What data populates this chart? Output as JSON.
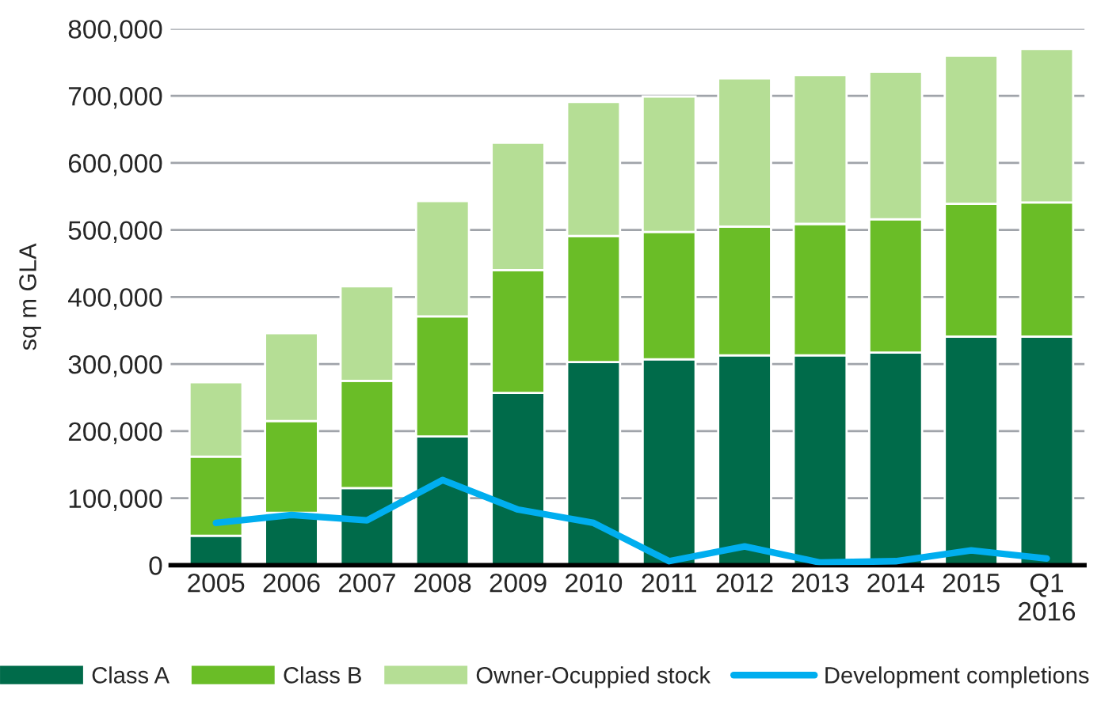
{
  "chart_data": {
    "type": "bar",
    "stacked": true,
    "ylabel": "sq m GLA",
    "categories": [
      "2005",
      "2006",
      "2007",
      "2008",
      "2009",
      "2010",
      "2011",
      "2012",
      "2013",
      "2014",
      "2015",
      "Q1\n2016"
    ],
    "series": [
      {
        "name": "Class A",
        "color": "#006b4a",
        "values": [
          44000,
          78000,
          115000,
          192000,
          257000,
          303000,
          307000,
          313000,
          313000,
          317000,
          341000,
          341000
        ]
      },
      {
        "name": "Class B",
        "color": "#6abd27",
        "values": [
          118000,
          137000,
          160000,
          179000,
          183000,
          188000,
          190000,
          192000,
          196000,
          199000,
          198000,
          200000
        ]
      },
      {
        "name": "Owner-Ocuppied stock",
        "color": "#b5de95",
        "values": [
          111000,
          131000,
          141000,
          172000,
          190000,
          200000,
          202000,
          221000,
          222000,
          220000,
          221000,
          229000
        ]
      },
      {
        "name": "Development completions",
        "type": "line",
        "color": "#00aeef",
        "values": [
          63000,
          75000,
          67000,
          127000,
          83000,
          63000,
          6000,
          28000,
          4000,
          6000,
          22000,
          10000
        ]
      }
    ],
    "ylim": [
      0,
      800000
    ],
    "yticks": [
      {
        "value": 0,
        "label": "0"
      },
      {
        "value": 100000,
        "label": "100,000"
      },
      {
        "value": 200000,
        "label": "200,000"
      },
      {
        "value": 300000,
        "label": "300,000"
      },
      {
        "value": 400000,
        "label": "400,000"
      },
      {
        "value": 500000,
        "label": "500,000"
      },
      {
        "value": 600000,
        "label": "600,000"
      },
      {
        "value": 700000,
        "label": "700,000"
      },
      {
        "value": 800000,
        "label": "800,000"
      }
    ],
    "grid": "y",
    "legend": "bottom"
  }
}
